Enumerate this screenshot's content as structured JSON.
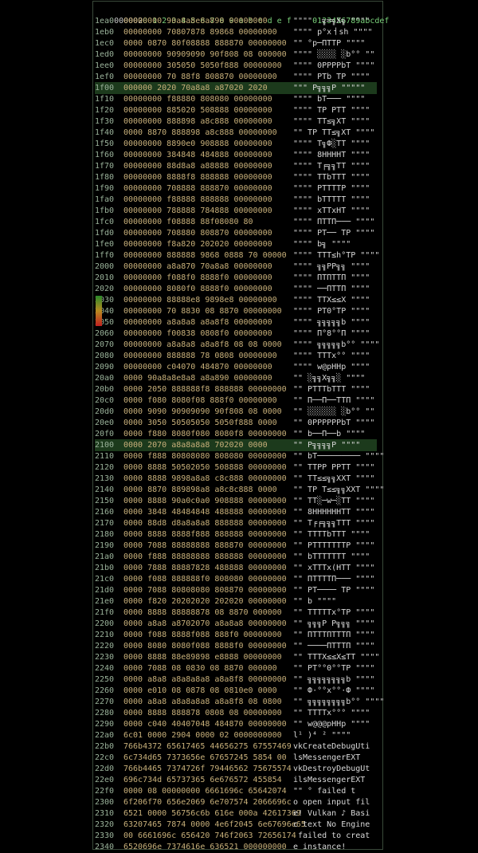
{
  "header": {
    "offset": "000002",
    "hex": "0 1 2 3 4 5 6 7 8 9 a b c d e f",
    "ascii": "0123456789abcdef"
  },
  "rows": [
    {
      "o": "1ea0",
      "h": "00000000 90a8a8e8a890 00000000",
      "a": "\"\"\"\"  ╗═╗X╗ \"\"\"\""
    },
    {
      "o": "1eb0",
      "h": "00000000 70807878 89868 00000000",
      "a": "\"\"\"\" p°xㅓsh \"\"\"\""
    },
    {
      "o": "1ec0",
      "h": "0000 0870 80f08888 888870 00000000",
      "a": "\"\" °p─ΠΤΤP \"\"\"\""
    },
    {
      "o": "1ed0",
      "h": "00000000 90909090 90f808 08 000000",
      "a": "\"\"\"\" ░░░░ ░b°° \"\""
    },
    {
      "o": "1ee0",
      "h": "00000000 305050 5050f888 00000000",
      "a": "\"\"\"\" 0PPPPbT \"\"\"\""
    },
    {
      "o": "1ef0",
      "h": "00000000 70 88f8 808870 00000000",
      "a": "\"\"\"\" PΤb ΤP \"\"\"\""
    },
    {
      "o": "1f00",
      "h": "000000 2020 70a8a8 a87020 2020",
      "a": "\"\"\" P╗╗╗P \"\"\"\"\"",
      "c": "hl"
    },
    {
      "o": "1f10",
      "h": "00000000 f88880 808080 00000000",
      "a": "\"\"\"\" bΤ─── \"\"\"\""
    },
    {
      "o": "1f20",
      "h": "00000000 885020 508888 00000000",
      "a": "\"\"\"\" ΤP PΤΤ \"\"\"\""
    },
    {
      "o": "1f30",
      "h": "00000000 888898 a8c888 00000000",
      "a": "\"\"\"\" ΤΤ≤╗XΤ \"\"\"\""
    },
    {
      "o": "1f40",
      "h": "0000 8870 888898 a8c888 00000000",
      "a": "\"\" ΤP ΤΤ≤╗XΤ \"\"\"\""
    },
    {
      "o": "1f50",
      "h": "00000000 8890e0 908888 00000000",
      "a": "\"\"\"\" Τ╗Ф░ΤΤ \"\"\"\""
    },
    {
      "o": "1f60",
      "h": "00000000 384848 484888 00000000",
      "a": "\"\"\"\" 8HHHHΤ \"\"\"\""
    },
    {
      "o": "1f70",
      "h": "00000000 88d8a8 a88888 00000000",
      "a": "\"\"\"\" Τ╒╗╗ΤΤ \"\"\"\""
    },
    {
      "o": "1f80",
      "h": "00000000 8888f8 888888 00000000",
      "a": "\"\"\"\" ΤΤbΤΤΤ \"\"\"\""
    },
    {
      "o": "1f90",
      "h": "00000000 708888 888870 00000000",
      "a": "\"\"\"\" PΤΤΤΤP \"\"\"\""
    },
    {
      "o": "1fa0",
      "h": "00000000 f88888 888888 00000000",
      "a": "\"\"\"\" bΤΤΤΤΤ \"\"\"\""
    },
    {
      "o": "1fb0",
      "h": "00000000 788888 784888 00000000",
      "a": "\"\"\"\" xΤΤxHΤ \"\"\"\""
    },
    {
      "o": "1fc0",
      "h": "00000000 f08888 88f08080 80",
      "a": "\"\"\"\" ΠΤΤΠ─── \"\"\"\""
    },
    {
      "o": "1fd0",
      "h": "00000000 708880 808870 00000000",
      "a": "\"\"\"\" PΤ── ΤP \"\"\"\""
    },
    {
      "o": "1fe0",
      "h": "00000000 f8a820 202020 00000000",
      "a": "\"\"\"\" b╗ \"\"\"\""
    },
    {
      "o": "1ff0",
      "h": "00000000 888888 9868 0888 70 00000",
      "a": "\"\"\"\" ΤΤΤ≤h°ΤP \"\"\"\""
    },
    {
      "o": "2000",
      "h": "00000000 a8a870 70a8a8 00000000",
      "a": "\"\"\"\" ╗╗PP╗╗ \"\"\"\""
    },
    {
      "o": "2010",
      "h": "00000000 f088f0 8888f0 00000000",
      "a": "\"\"\"\" ΠΤΠΤΤΠ \"\"\"\""
    },
    {
      "o": "2020",
      "h": "00000000 8080f0 8888f0 00000000",
      "a": "\"\"\"\" ──ΠΤΤΠ \"\"\"\""
    },
    {
      "o": "2030",
      "h": "00000000 88888e8 9898e8 00000000",
      "a": "\"\"\"\" ΤΤX≤≤X \"\"\"\""
    },
    {
      "o": "2040",
      "h": "00000000 70 8830 08 8870 00000000",
      "a": "\"\"\"\" PΤ0°ΤP \"\"\"\""
    },
    {
      "o": "2050",
      "h": "00000000 a8a8a8 a8a8f8 00000000",
      "a": "\"\"\"\" ╗╗╗╗╗b \"\"\"\""
    },
    {
      "o": "2060",
      "h": "00000000 f00838 0808f0 00000000",
      "a": "\"\"\"\" Π°8°°Π \"\"\"\""
    },
    {
      "o": "2070",
      "h": "00000000 a8a8a8 a8a8f8 08 08 0000",
      "a": "\"\"\"\" ╗╗╗╗╗b°° \"\"\"\""
    },
    {
      "o": "2080",
      "h": "00000000 888888 78 0808 00000000",
      "a": "\"\"\"\" ΤΤΤx°° \"\"\"\""
    },
    {
      "o": "2090",
      "h": "00000000 c04070 484870 00000000",
      "a": "\"\"\"\" w@pHHp \"\"\"\""
    },
    {
      "o": "20a0",
      "h": "0000 90a8a8e8a8 a8a890 00000000",
      "a": "\"\" ░╗╗X╗╗░ \"\"\"\""
    },
    {
      "o": "20b0",
      "h": "0000 2050 888888f8 888888 00000000",
      "a": "\"\" PΤΤΤbΤΤΤ \"\"\"\""
    },
    {
      "o": "20c0",
      "h": "0000 f080 8080f08 888f0 00000000",
      "a": "\"\" Π──Π──ΤΤΠ \"\"\"\""
    },
    {
      "o": "20d0",
      "h": "0000 9090 90909090 90f808 08 0000",
      "a": "\"\" ░░░░░░ ░b°° \"\""
    },
    {
      "o": "20e0",
      "h": "0000 3050 50505050 5050f888 0000",
      "a": "\"\" 0PPPPPPbT \"\"\"\""
    },
    {
      "o": "20f0",
      "h": "0000 f880 8080f080 8080f8 00000000",
      "a": "\"\" b──Π──b \"\"\"\""
    },
    {
      "o": "2100",
      "h": "0000 2070 a8a8a8a8 702020 0000",
      "a": "\"\" P╗╗╗╗P \"\"\"\"",
      "c": "hl"
    },
    {
      "o": "2110",
      "h": "0000 f888 80808080 808080 00000000",
      "a": "\"\" bΤ───────── \"\"\"\""
    },
    {
      "o": "2120",
      "h": "0000 8888 50502050 508888 00000000",
      "a": "\"\" ΤΤPP PPΤΤ \"\"\"\""
    },
    {
      "o": "2130",
      "h": "0000 8888 9898a8a8 c8c888 00000000",
      "a": "\"\" ΤΤ≤≤╗╗XXΤ \"\"\"\""
    },
    {
      "o": "2140",
      "h": "0000 8870 889898a8 a8c8c888 0000",
      "a": "\"\" ΤP Τ≤≤╗╗XXΤ \"\"\"\""
    },
    {
      "o": "2150",
      "h": "0000 8888 90a0c0a0 908888 00000000",
      "a": "\"\" ΤΤ░─w─░ΤΤ \"\"\"\""
    },
    {
      "o": "2160",
      "h": "0000 3848 48484848 488888 00000000",
      "a": "\"\" 8HHHHHHΤΤ \"\"\"\""
    },
    {
      "o": "2170",
      "h": "0000 88d8 d8a8a8a8 888888 00000000",
      "a": "\"\" Τ╒╒╗╗╗ΤΤΤ \"\"\"\""
    },
    {
      "o": "2180",
      "h": "0000 8888 8888f888 888888 00000000",
      "a": "\"\" ΤΤΤΤbΤΤΤ \"\"\"\""
    },
    {
      "o": "2190",
      "h": "0000 7088 88888888 888870 00000000",
      "a": "\"\" PΤΤΤΤΤΤΤP \"\"\"\""
    },
    {
      "o": "21a0",
      "h": "0000 f888 88888888 888888 00000000",
      "a": "\"\" bΤΤΤΤΤΤΤ \"\"\"\""
    },
    {
      "o": "21b0",
      "h": "0000 7888 88887828 488888 00000000",
      "a": "\"\" xΤΤΤx(HΤΤ \"\"\"\""
    },
    {
      "o": "21c0",
      "h": "0000 f088 888888f0 808080 00000000",
      "a": "\"\" ΠΤΤΤΤΠ─── \"\"\"\""
    },
    {
      "o": "21d0",
      "h": "0000 7088 80808080 808870 00000000",
      "a": "\"\" PΤ──── ΤP \"\"\"\""
    },
    {
      "o": "21e0",
      "h": "0000 f820 20202020 202020 00000000",
      "a": "\"\" b \"\"\"\""
    },
    {
      "o": "21f0",
      "h": "0000 8888 88888878 08 8870 000000",
      "a": "\"\" ΤΤΤΤΤx°ΤP \"\"\"\""
    },
    {
      "o": "2200",
      "h": "0000 a8a8 a8702070 a8a8a8 00000000",
      "a": "\"\" ╗╗╗P P╗╗╗ \"\"\"\""
    },
    {
      "o": "2210",
      "h": "0000 f088 8888f088 888f0 00000000",
      "a": "\"\" ΠΤΤΤΠΤΤΤΠ \"\"\"\""
    },
    {
      "o": "2220",
      "h": "0000 8080 8080f088 8888f0 00000000",
      "a": "\"\" ────ΠΤΤΤΠ \"\"\"\""
    },
    {
      "o": "2230",
      "h": "0000 8888 88e89898 e8888 00000000",
      "a": "\"\" ΤΤΤX≤≤X≤ΤΤ \"\"\"\""
    },
    {
      "o": "2240",
      "h": "0000 7088 08 0830 08 8870 000000",
      "a": "\"\" PΤ°°0°°ΤP \"\"\"\""
    },
    {
      "o": "2250",
      "h": "0000 a8a8 a8a8a8a8 a8a8f8 00000000",
      "a": "\"\" ╗╗╗╗╗╗╗╗b \"\"\"\""
    },
    {
      "o": "2260",
      "h": "0000 e010 08 0878 08 0810e0 0000",
      "a": "\"\" Ф·°°x°°·Ф \"\"\"\""
    },
    {
      "o": "2270",
      "h": "0000 a8a8 a8a8a8a8 a8a8f8 08 0800",
      "a": "\"\" ╗╗╗╗╗╗╗╗b°° \"\"\"\""
    },
    {
      "o": "2280",
      "h": "0000 8888 888878 0808 08 00000000",
      "a": "\"\" ΤΤΤΤx°°° \"\"\"\""
    },
    {
      "o": "2290",
      "h": "0000 c040 40407048 484870 00000000",
      "a": "\"\" w@@@pHHp \"\"\"\""
    },
    {
      "o": "22a0",
      "h": "6c01 0000 2904 0000 02 0000000000",
      "a": "l¹ )⁴ ² \"\"\"\""
    },
    {
      "o": "22b0",
      "h": "766b4372 65617465 44656275 67557469",
      "a": "vkCreateDebugUti"
    },
    {
      "o": "22c0",
      "h": "6c734d65 7373656e 67657245 5854 00",
      "a": "lsMessengerEXT"
    },
    {
      "o": "22d0",
      "h": "766b4465 7374726f 79446562 75675574",
      "a": "vkDestroyDebugUt"
    },
    {
      "o": "22e0",
      "h": "696c734d 65737365 6e676572 455854",
      "a": "ilsMessengerEXT"
    },
    {
      "o": "22f0",
      "h": "0000 08 00000000 6661696c 65642074",
      "a": "\"\" ° failed t"
    },
    {
      "o": "2300",
      "h": "6f206f70 656e2069 6e707574 2066696c",
      "a": "o open input fil"
    },
    {
      "o": "2310",
      "h": "6521 0000 56756c6b 616e 000a 42617369",
      "a": "e! Vulkan ♪ Basi"
    },
    {
      "o": "2320",
      "h": "63207465 7874 0000 4e6f2045 6e67696e65",
      "a": "c text No Engine"
    },
    {
      "o": "2330",
      "h": "00 6661696c 656420 746f2063 72656174",
      "a": " failed to creat"
    },
    {
      "o": "2340",
      "h": "6520696e 7374616e 636521 000000000",
      "a": "e instance!"
    }
  ]
}
